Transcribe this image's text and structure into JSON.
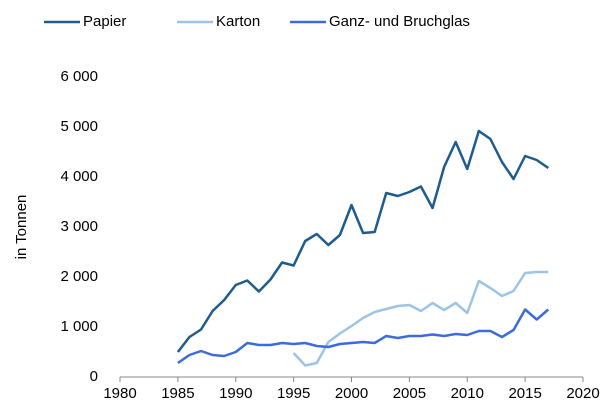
{
  "chart_data": {
    "type": "line",
    "y_label": "in Tonnen",
    "x": [
      1985,
      1986,
      1987,
      1988,
      1989,
      1990,
      1991,
      1992,
      1993,
      1994,
      1995,
      1996,
      1997,
      1998,
      1999,
      2000,
      2001,
      2002,
      2003,
      2004,
      2005,
      2006,
      2007,
      2008,
      2009,
      2010,
      2011,
      2012,
      2013,
      2014,
      2015,
      2016,
      2017
    ],
    "series": [
      {
        "name": "Papier",
        "color": "#1f5b8e",
        "values": [
          500,
          800,
          950,
          1320,
          1540,
          1840,
          1930,
          1710,
          1950,
          2290,
          2230,
          2720,
          2860,
          2640,
          2840,
          3440,
          2880,
          2900,
          3680,
          3620,
          3700,
          3810,
          3380,
          4200,
          4700,
          4160,
          4920,
          4760,
          4300,
          3960,
          4420,
          4340,
          4180
        ]
      },
      {
        "name": "Karton",
        "color": "#9dc3e6",
        "values": [
          null,
          null,
          null,
          null,
          null,
          null,
          null,
          null,
          null,
          null,
          480,
          230,
          280,
          700,
          870,
          1020,
          1180,
          1300,
          1360,
          1420,
          1440,
          1320,
          1480,
          1340,
          1480,
          1280,
          1920,
          1780,
          1620,
          1720,
          2080,
          2100,
          2100
        ]
      },
      {
        "name": "Ganz- und Bruchglas",
        "color": "#3d6bdc",
        "values": [
          280,
          440,
          520,
          440,
          420,
          500,
          680,
          640,
          640,
          680,
          660,
          680,
          620,
          600,
          660,
          680,
          700,
          680,
          820,
          780,
          820,
          820,
          850,
          820,
          860,
          840,
          920,
          920,
          800,
          940,
          1350,
          1150,
          1350
        ]
      }
    ],
    "xlim": [
      1980,
      2020
    ],
    "xticks": [
      1980,
      1985,
      1990,
      1995,
      2000,
      2005,
      2010,
      2015,
      2020
    ],
    "ylim": [
      0,
      6000
    ],
    "yticks": [
      0,
      {
        "value": 1000,
        "label": "1 000"
      },
      {
        "value": 2000,
        "label": "2 000"
      },
      {
        "value": 3000,
        "label": "3 000"
      },
      {
        "value": 4000,
        "label": "4 000"
      },
      {
        "value": 5000,
        "label": "5 000"
      },
      {
        "value": 6000,
        "label": "6 000"
      }
    ],
    "grid": false,
    "legend": "top"
  }
}
